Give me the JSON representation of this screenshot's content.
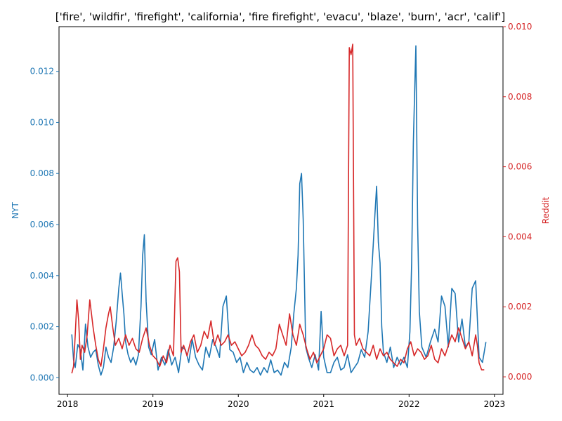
{
  "chart_data": {
    "type": "line",
    "title": "['fire', 'wildfir', 'firefight', 'california', 'fire firefight', 'evacu', 'blaze', 'burn', 'acr', 'calif']",
    "xlabel": "",
    "x_ticks": [
      "2018",
      "2019",
      "2020",
      "2021",
      "2022",
      "2023"
    ],
    "x_tick_values": [
      2018,
      2019,
      2020,
      2021,
      2022,
      2023
    ],
    "xlim": [
      2017.9,
      2023.1
    ],
    "grid": false,
    "legend": "none",
    "left_axis": {
      "label": "NYT",
      "color": "#1f77b4",
      "ylim": [
        -0.00065,
        0.01375
      ],
      "ticks": [
        "0.000",
        "0.002",
        "0.004",
        "0.006",
        "0.008",
        "0.010",
        "0.012"
      ],
      "tick_values": [
        0,
        0.002,
        0.004,
        0.006,
        0.008,
        0.01,
        0.012
      ]
    },
    "right_axis": {
      "label": "Reddit",
      "color": "#d62728",
      "ylim": [
        -0.0005,
        0.01
      ],
      "ticks": [
        "0.000",
        "0.002",
        "0.004",
        "0.006",
        "0.008",
        "0.010"
      ],
      "tick_values": [
        0,
        0.002,
        0.004,
        0.006,
        0.008,
        0.01
      ]
    },
    "series": [
      {
        "name": "NYT",
        "axis": "left",
        "color": "#1f77b4",
        "x": [
          2018.05,
          2018.07,
          2018.09,
          2018.12,
          2018.15,
          2018.18,
          2018.21,
          2018.24,
          2018.27,
          2018.3,
          2018.33,
          2018.36,
          2018.39,
          2018.42,
          2018.45,
          2018.48,
          2018.51,
          2018.54,
          2018.57,
          2018.6,
          2018.62,
          2018.64,
          2018.66,
          2018.68,
          2018.71,
          2018.74,
          2018.77,
          2018.8,
          2018.83,
          2018.86,
          2018.88,
          2018.9,
          2018.92,
          2018.95,
          2018.98,
          2019.02,
          2019.06,
          2019.1,
          2019.14,
          2019.18,
          2019.22,
          2019.26,
          2019.3,
          2019.34,
          2019.38,
          2019.42,
          2019.46,
          2019.5,
          2019.54,
          2019.58,
          2019.62,
          2019.66,
          2019.7,
          2019.74,
          2019.78,
          2019.82,
          2019.86,
          2019.9,
          2019.94,
          2019.98,
          2020.02,
          2020.06,
          2020.1,
          2020.14,
          2020.18,
          2020.22,
          2020.26,
          2020.3,
          2020.34,
          2020.38,
          2020.42,
          2020.46,
          2020.5,
          2020.54,
          2020.58,
          2020.62,
          2020.65,
          2020.68,
          2020.7,
          2020.72,
          2020.74,
          2020.76,
          2020.79,
          2020.82,
          2020.86,
          2020.9,
          2020.94,
          2020.97,
          2021.0,
          2021.04,
          2021.08,
          2021.12,
          2021.16,
          2021.2,
          2021.24,
          2021.28,
          2021.32,
          2021.36,
          2021.4,
          2021.44,
          2021.48,
          2021.52,
          2021.56,
          2021.58,
          2021.6,
          2021.62,
          2021.64,
          2021.66,
          2021.68,
          2021.7,
          2021.74,
          2021.78,
          2021.82,
          2021.86,
          2021.9,
          2021.94,
          2021.98,
          2022.01,
          2022.03,
          2022.05,
          2022.07,
          2022.08,
          2022.1,
          2022.12,
          2022.15,
          2022.2,
          2022.25,
          2022.3,
          2022.34,
          2022.38,
          2022.42,
          2022.46,
          2022.5,
          2022.54,
          2022.58,
          2022.62,
          2022.66,
          2022.7,
          2022.74,
          2022.78,
          2022.82,
          2022.86,
          2022.9
        ],
        "values": [
          0.0017,
          0.0007,
          0.0004,
          0.0013,
          0.0011,
          0.0003,
          0.0021,
          0.0012,
          0.0008,
          0.001,
          0.0011,
          0.0005,
          0.0001,
          0.0004,
          0.0012,
          0.0008,
          0.0006,
          0.0012,
          0.0022,
          0.0035,
          0.0041,
          0.0033,
          0.0025,
          0.0014,
          0.0009,
          0.0006,
          0.0008,
          0.0005,
          0.0009,
          0.0028,
          0.0048,
          0.0056,
          0.003,
          0.0012,
          0.0009,
          0.0015,
          0.0003,
          0.0008,
          0.0005,
          0.0011,
          0.0005,
          0.0008,
          0.0002,
          0.0012,
          0.0011,
          0.0006,
          0.0015,
          0.0008,
          0.0005,
          0.0003,
          0.0012,
          0.0008,
          0.0015,
          0.0012,
          0.0008,
          0.0028,
          0.0032,
          0.0011,
          0.001,
          0.0006,
          0.0008,
          0.0002,
          0.0006,
          0.0003,
          0.0002,
          0.0004,
          0.0001,
          0.0004,
          0.0002,
          0.0007,
          0.0002,
          0.0003,
          0.0001,
          0.0006,
          0.0004,
          0.0012,
          0.0025,
          0.0035,
          0.0048,
          0.0076,
          0.008,
          0.0062,
          0.0012,
          0.0008,
          0.0004,
          0.0009,
          0.0003,
          0.0026,
          0.0008,
          0.0002,
          0.0002,
          0.0006,
          0.0008,
          0.0003,
          0.0004,
          0.0009,
          0.0002,
          0.0004,
          0.0006,
          0.0011,
          0.0008,
          0.0018,
          0.004,
          0.0052,
          0.0064,
          0.0075,
          0.0053,
          0.0045,
          0.002,
          0.001,
          0.0006,
          0.0012,
          0.0004,
          0.0008,
          0.0005,
          0.0008,
          0.0004,
          0.0018,
          0.0045,
          0.0092,
          0.0118,
          0.013,
          0.006,
          0.0026,
          0.0012,
          0.0008,
          0.0014,
          0.0019,
          0.0014,
          0.0032,
          0.0028,
          0.0012,
          0.0035,
          0.0033,
          0.0014,
          0.0023,
          0.0012,
          0.0014,
          0.0035,
          0.0038,
          0.0008,
          0.0006,
          0.0014
        ]
      },
      {
        "name": "Reddit",
        "axis": "right",
        "color": "#d62728",
        "x": [
          2018.05,
          2018.07,
          2018.09,
          2018.11,
          2018.13,
          2018.15,
          2018.17,
          2018.2,
          2018.23,
          2018.26,
          2018.28,
          2018.3,
          2018.33,
          2018.36,
          2018.39,
          2018.42,
          2018.45,
          2018.48,
          2018.5,
          2018.53,
          2018.56,
          2018.6,
          2018.64,
          2018.68,
          2018.72,
          2018.76,
          2018.8,
          2018.84,
          2018.88,
          2018.92,
          2018.96,
          2019.0,
          2019.04,
          2019.08,
          2019.12,
          2019.16,
          2019.2,
          2019.24,
          2019.27,
          2019.29,
          2019.31,
          2019.33,
          2019.36,
          2019.4,
          2019.44,
          2019.48,
          2019.52,
          2019.56,
          2019.6,
          2019.64,
          2019.68,
          2019.72,
          2019.76,
          2019.8,
          2019.84,
          2019.88,
          2019.92,
          2019.96,
          2020.0,
          2020.04,
          2020.08,
          2020.12,
          2020.16,
          2020.2,
          2020.24,
          2020.28,
          2020.32,
          2020.36,
          2020.4,
          2020.44,
          2020.48,
          2020.52,
          2020.56,
          2020.6,
          2020.64,
          2020.68,
          2020.72,
          2020.76,
          2020.8,
          2020.84,
          2020.88,
          2020.92,
          2020.96,
          2021.0,
          2021.04,
          2021.08,
          2021.12,
          2021.16,
          2021.2,
          2021.24,
          2021.28,
          2021.3,
          2021.32,
          2021.34,
          2021.36,
          2021.38,
          2021.42,
          2021.46,
          2021.5,
          2021.54,
          2021.58,
          2021.62,
          2021.66,
          2021.7,
          2021.74,
          2021.78,
          2021.82,
          2021.86,
          2021.9,
          2021.94,
          2021.98,
          2022.02,
          2022.06,
          2022.1,
          2022.14,
          2022.18,
          2022.22,
          2022.26,
          2022.3,
          2022.34,
          2022.38,
          2022.42,
          2022.46,
          2022.5,
          2022.54,
          2022.58,
          2022.62,
          2022.66,
          2022.7,
          2022.74,
          2022.78,
          2022.8,
          2022.82,
          2022.85,
          2022.88
        ],
        "values": [
          0.0001,
          0.0003,
          0.0012,
          0.0022,
          0.0016,
          0.0005,
          0.0009,
          0.0007,
          0.0012,
          0.0022,
          0.0018,
          0.0014,
          0.0009,
          0.0005,
          0.0003,
          0.0008,
          0.0014,
          0.0018,
          0.002,
          0.0014,
          0.0009,
          0.0011,
          0.0008,
          0.0012,
          0.0009,
          0.0011,
          0.0008,
          0.0007,
          0.0011,
          0.0014,
          0.0009,
          0.0006,
          0.0005,
          0.0003,
          0.0006,
          0.0004,
          0.0009,
          0.0006,
          0.0033,
          0.0034,
          0.003,
          0.0007,
          0.0009,
          0.0006,
          0.001,
          0.0012,
          0.0007,
          0.0009,
          0.0013,
          0.0011,
          0.0016,
          0.0009,
          0.0012,
          0.0009,
          0.001,
          0.0012,
          0.0009,
          0.001,
          0.0008,
          0.0006,
          0.0007,
          0.0009,
          0.0012,
          0.0009,
          0.0008,
          0.0006,
          0.0005,
          0.0007,
          0.0006,
          0.0008,
          0.0015,
          0.0012,
          0.0009,
          0.0018,
          0.0012,
          0.0009,
          0.0015,
          0.0012,
          0.0008,
          0.0005,
          0.0007,
          0.0004,
          0.0006,
          0.0008,
          0.0012,
          0.0011,
          0.0006,
          0.0008,
          0.0009,
          0.0006,
          0.0009,
          0.0094,
          0.0092,
          0.0095,
          0.0012,
          0.0009,
          0.0011,
          0.0008,
          0.0007,
          0.0006,
          0.0009,
          0.0005,
          0.0008,
          0.0006,
          0.0007,
          0.0005,
          0.0004,
          0.0003,
          0.0005,
          0.0004,
          0.0008,
          0.001,
          0.0006,
          0.0008,
          0.0007,
          0.0005,
          0.0006,
          0.0009,
          0.0005,
          0.0004,
          0.0008,
          0.0006,
          0.0009,
          0.0012,
          0.001,
          0.0014,
          0.0011,
          0.0008,
          0.001,
          0.0006,
          0.0012,
          0.0009,
          0.0004,
          0.0002,
          0.0002
        ]
      }
    ]
  }
}
